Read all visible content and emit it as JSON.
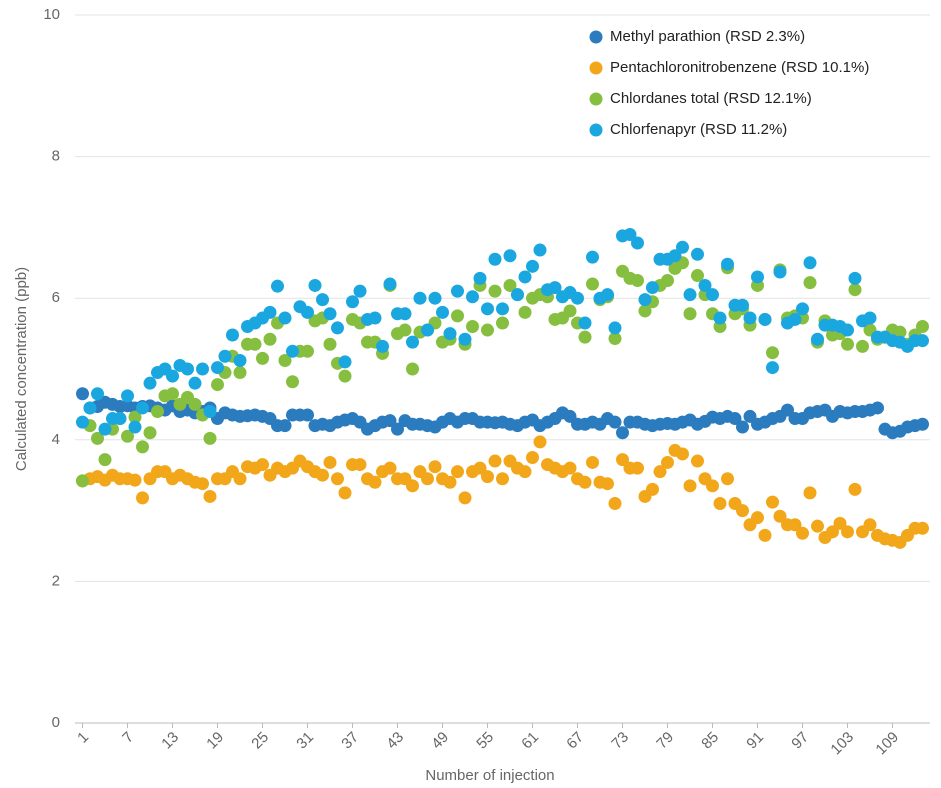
{
  "chart_data": {
    "type": "scatter",
    "x_label": "Number of injection",
    "y_label": "Calculated concentration (ppb)",
    "x": [
      1,
      2,
      3,
      4,
      5,
      6,
      7,
      8,
      9,
      10,
      11,
      12,
      13,
      14,
      15,
      16,
      17,
      18,
      19,
      20,
      21,
      22,
      23,
      24,
      25,
      26,
      27,
      28,
      29,
      30,
      31,
      32,
      33,
      34,
      35,
      36,
      37,
      38,
      39,
      40,
      41,
      42,
      43,
      44,
      45,
      46,
      47,
      48,
      49,
      50,
      51,
      52,
      53,
      54,
      55,
      56,
      57,
      58,
      59,
      60,
      61,
      62,
      63,
      64,
      65,
      66,
      67,
      68,
      69,
      70,
      71,
      72,
      73,
      74,
      75,
      76,
      77,
      78,
      79,
      80,
      81,
      82,
      83,
      84,
      85,
      86,
      87,
      88,
      89,
      90,
      91,
      92,
      93,
      94,
      95,
      96,
      97,
      98,
      99,
      100,
      101,
      102,
      103,
      104,
      105,
      106,
      107,
      108,
      109,
      110,
      111,
      112,
      113
    ],
    "xlim": [
      0,
      114
    ],
    "xticks": [
      1,
      7,
      13,
      19,
      25,
      31,
      37,
      43,
      49,
      55,
      61,
      67,
      73,
      79,
      85,
      91,
      97,
      103,
      109
    ],
    "ylim": [
      0,
      10
    ],
    "yticks": [
      0,
      2,
      4,
      6,
      8,
      10
    ],
    "grid": true,
    "legend": "top-right",
    "series": [
      {
        "name": "Methyl parathion (RSD 2.3%)",
        "color": "#2b7bbf",
        "values": [
          4.65,
          4.45,
          4.47,
          4.53,
          4.5,
          4.47,
          4.48,
          4.45,
          4.47,
          4.48,
          4.45,
          4.42,
          4.48,
          4.4,
          4.42,
          4.38,
          4.4,
          4.45,
          4.3,
          4.38,
          4.35,
          4.33,
          4.34,
          4.35,
          4.33,
          4.3,
          4.2,
          4.2,
          4.35,
          4.35,
          4.35,
          4.2,
          4.22,
          4.2,
          4.25,
          4.28,
          4.3,
          4.25,
          4.15,
          4.2,
          4.25,
          4.27,
          4.15,
          4.27,
          4.22,
          4.22,
          4.2,
          4.18,
          4.25,
          4.3,
          4.25,
          4.3,
          4.3,
          4.25,
          4.25,
          4.24,
          4.25,
          4.22,
          4.2,
          4.25,
          4.28,
          4.2,
          4.25,
          4.3,
          4.38,
          4.33,
          4.22,
          4.22,
          4.25,
          4.22,
          4.3,
          4.25,
          4.1,
          4.25,
          4.25,
          4.22,
          4.2,
          4.22,
          4.23,
          4.22,
          4.25,
          4.28,
          4.22,
          4.26,
          4.32,
          4.3,
          4.33,
          4.3,
          4.18,
          4.33,
          4.22,
          4.25,
          4.3,
          4.33,
          4.42,
          4.3,
          4.3,
          4.38,
          4.4,
          4.42,
          4.33,
          4.4,
          4.38,
          4.4,
          4.4,
          4.42,
          4.45,
          4.15,
          4.1,
          4.12,
          4.18,
          4.2,
          4.22
        ]
      },
      {
        "name": "Pentachloronitrobenzene (RSD 10.1%)",
        "color": "#f2a71b",
        "values": [
          3.42,
          3.45,
          3.48,
          3.43,
          3.5,
          3.45,
          3.45,
          3.43,
          3.18,
          3.45,
          3.55,
          3.55,
          3.45,
          3.5,
          3.45,
          3.4,
          3.38,
          3.2,
          3.45,
          3.45,
          3.55,
          3.45,
          3.62,
          3.6,
          3.65,
          3.5,
          3.6,
          3.55,
          3.6,
          3.7,
          3.62,
          3.55,
          3.5,
          3.68,
          3.45,
          3.25,
          3.65,
          3.65,
          3.45,
          3.4,
          3.55,
          3.6,
          3.45,
          3.45,
          3.35,
          3.55,
          3.45,
          3.62,
          3.45,
          3.4,
          3.55,
          3.18,
          3.55,
          3.6,
          3.48,
          3.7,
          3.45,
          3.7,
          3.6,
          3.55,
          3.75,
          3.97,
          3.65,
          3.6,
          3.55,
          3.6,
          3.45,
          3.4,
          3.68,
          3.4,
          3.38,
          3.1,
          3.72,
          3.6,
          3.6,
          3.2,
          3.3,
          3.55,
          3.68,
          3.85,
          3.8,
          3.35,
          3.7,
          3.45,
          3.35,
          3.1,
          3.45,
          3.1,
          3.0,
          2.8,
          2.9,
          2.65,
          3.12,
          2.92,
          2.8,
          2.8,
          2.68,
          3.25,
          2.78,
          2.62,
          2.7,
          2.82,
          2.7,
          3.3,
          2.7,
          2.8,
          2.65,
          2.6,
          2.58,
          2.55,
          2.65,
          2.75,
          2.75
        ]
      },
      {
        "name": "Chlordanes total (RSD 12.1%)",
        "color": "#86bf3f",
        "values": [
          3.42,
          4.2,
          4.02,
          3.72,
          4.15,
          4.3,
          4.05,
          4.32,
          3.9,
          4.1,
          4.4,
          4.62,
          4.65,
          4.5,
          4.6,
          4.5,
          4.35,
          4.02,
          4.78,
          4.95,
          5.18,
          4.95,
          5.35,
          5.35,
          5.15,
          5.42,
          5.65,
          5.12,
          4.82,
          5.25,
          5.25,
          5.68,
          5.72,
          5.35,
          5.08,
          4.9,
          5.7,
          5.65,
          5.38,
          5.38,
          5.22,
          6.18,
          5.5,
          5.55,
          5.0,
          5.52,
          5.55,
          5.65,
          5.38,
          5.42,
          5.75,
          5.35,
          5.6,
          6.18,
          5.55,
          6.1,
          5.65,
          6.18,
          6.05,
          5.8,
          6.0,
          6.05,
          6.02,
          5.7,
          5.72,
          5.82,
          5.65,
          5.45,
          6.2,
          5.98,
          6.02,
          5.43,
          6.38,
          6.28,
          6.25,
          5.82,
          5.95,
          6.18,
          6.25,
          6.42,
          6.5,
          5.78,
          6.32,
          6.05,
          5.78,
          5.6,
          6.43,
          5.78,
          5.85,
          5.62,
          6.18,
          5.7,
          5.23,
          6.4,
          5.72,
          5.75,
          5.72,
          6.22,
          5.38,
          5.68,
          5.48,
          5.5,
          5.35,
          6.12,
          5.32,
          5.55,
          5.42,
          5.45,
          5.55,
          5.52,
          5.35,
          5.48,
          5.6
        ]
      },
      {
        "name": "Chlorfenapyr (RSD 11.2%)",
        "color": "#1aa7e0",
        "values": [
          4.25,
          4.45,
          4.65,
          4.15,
          4.3,
          4.3,
          4.62,
          4.18,
          4.45,
          4.8,
          4.95,
          5.0,
          4.9,
          5.05,
          5.0,
          4.8,
          5.0,
          4.4,
          5.02,
          5.18,
          5.48,
          5.12,
          5.6,
          5.65,
          5.72,
          5.8,
          6.17,
          5.72,
          5.25,
          5.88,
          5.8,
          6.18,
          5.98,
          5.78,
          5.58,
          5.1,
          5.95,
          6.1,
          5.7,
          5.72,
          5.32,
          6.2,
          5.78,
          5.78,
          5.38,
          6.0,
          5.55,
          6.0,
          5.8,
          5.5,
          6.1,
          5.42,
          6.02,
          6.28,
          5.85,
          6.55,
          5.85,
          6.6,
          6.05,
          6.3,
          6.45,
          6.68,
          6.12,
          6.15,
          6.02,
          6.08,
          6.0,
          5.65,
          6.58,
          6.0,
          6.05,
          5.58,
          6.88,
          6.9,
          6.78,
          5.98,
          6.15,
          6.55,
          6.55,
          6.6,
          6.72,
          6.05,
          6.62,
          6.18,
          6.05,
          5.72,
          6.48,
          5.9,
          5.9,
          5.72,
          6.3,
          5.7,
          5.02,
          6.37,
          5.65,
          5.7,
          5.85,
          6.5,
          5.42,
          5.62,
          5.62,
          5.6,
          5.55,
          6.28,
          5.68,
          5.72,
          5.45,
          5.45,
          5.4,
          5.38,
          5.32,
          5.4,
          5.4
        ]
      }
    ]
  }
}
